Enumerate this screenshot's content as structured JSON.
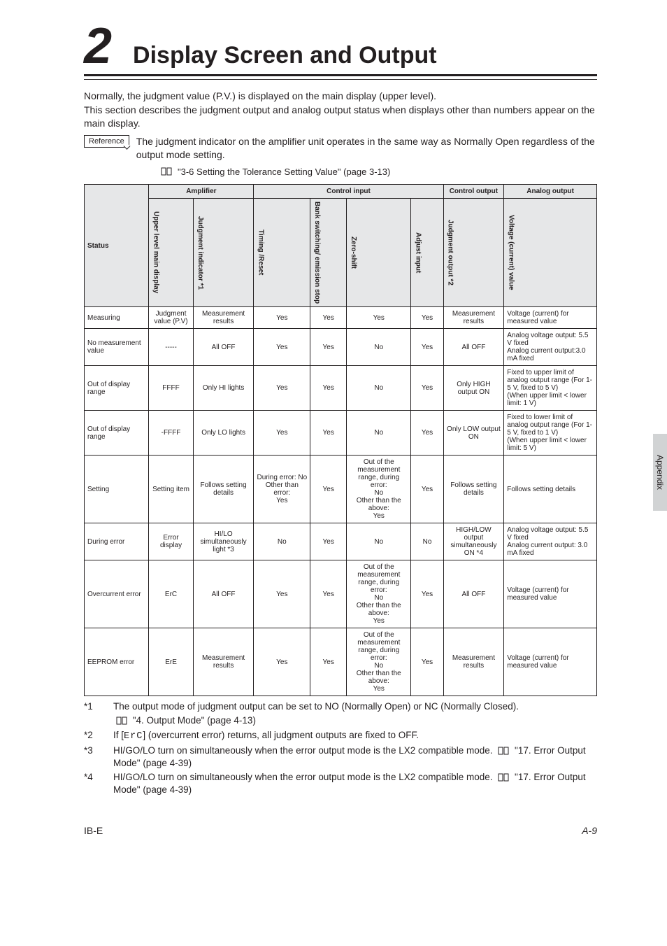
{
  "chapter": {
    "num": "2",
    "title": "Display Screen and Output"
  },
  "intro": "Normally, the judgment value (P.V.) is displayed on the main display (upper level).\nThis section describes the judgment output and analog output status when displays other than numbers appear on the main display.",
  "reference": {
    "label": "Reference",
    "text": "The judgment indicator on the amplifier unit operates in the same way as Normally Open regardless of the output mode setting."
  },
  "xref_top": "\"3-6 Setting the Tolerance Setting Value\" (page 3-13)",
  "table": {
    "group_headers": {
      "status": "Status",
      "amplifier": "Amplifier",
      "control_input": "Control input",
      "control_output": "Control output",
      "analog_output": "Analog output"
    },
    "col_headers": {
      "upper": "Upper level main display",
      "judgment_ind": "Judgment indicator *1",
      "timing": "Timing /Reset",
      "bank": "Bank switching/ emission stop",
      "zero": "Zero-shift",
      "adjust": "Adjust input",
      "judgment_out": "Judgment output *2",
      "voltage": "Voltage (current) value"
    },
    "rows": [
      {
        "status": "Measuring",
        "upper": "Judgment value (P.V)",
        "ji": "Measurement results",
        "timing": "Yes",
        "bank": "Yes",
        "zero": "Yes",
        "adjust": "Yes",
        "jo": "Measurement results",
        "vo": "Voltage (current) for measured value"
      },
      {
        "status": "No measurement value",
        "upper": "-----",
        "ji": "All OFF",
        "timing": "Yes",
        "bank": "Yes",
        "zero": "No",
        "adjust": "Yes",
        "jo": "All OFF",
        "vo": "Analog voltage output: 5.5 V fixed\nAnalog current output:3.0 mA fixed"
      },
      {
        "status": "Out of display range",
        "upper": "FFFF",
        "ji": "Only HI lights",
        "timing": "Yes",
        "bank": "Yes",
        "zero": "No",
        "adjust": "Yes",
        "jo": "Only HIGH output ON",
        "vo": "Fixed to upper limit of analog output range (For 1-5 V, fixed to 5 V)\n(When upper limit < lower limit: 1 V)"
      },
      {
        "status": "Out of display range",
        "upper": "-FFFF",
        "ji": "Only LO lights",
        "timing": "Yes",
        "bank": "Yes",
        "zero": "No",
        "adjust": "Yes",
        "jo": "Only LOW output ON",
        "vo": "Fixed to lower limit of analog output range (For 1-5 V, fixed to 1 V)\n(When upper limit < lower limit: 5 V)"
      },
      {
        "status": "Setting",
        "upper": "Setting item",
        "ji": "Follows setting details",
        "timing": "During error: No\nOther than error:\nYes",
        "bank": "Yes",
        "zero": "Out of the measurement range, during error:\nNo\nOther than the above:\nYes",
        "adjust": "Yes",
        "jo": "Follows setting details",
        "vo": "Follows setting details"
      },
      {
        "status": "During error",
        "upper": "Error display",
        "ji": "HI/LO simultaneously light *3",
        "timing": "No",
        "bank": "Yes",
        "zero": "No",
        "adjust": "No",
        "jo": "HIGH/LOW output simultaneously ON *4",
        "vo": "Analog voltage output: 5.5 V fixed\nAnalog current output: 3.0 mA fixed"
      },
      {
        "status": "Overcurrent error",
        "upper": "ErC",
        "ji": "All OFF",
        "timing": "Yes",
        "bank": "Yes",
        "zero": "Out of the measurement range, during error:\nNo\nOther than the above:\nYes",
        "adjust": "Yes",
        "jo": "All OFF",
        "vo": "Voltage (current) for measured value"
      },
      {
        "status": "EEPROM error",
        "upper": "ErE",
        "ji": "Measurement results",
        "timing": "Yes",
        "bank": "Yes",
        "zero": "Out of the measurement range, during error:\nNo\nOther than the above:\nYes",
        "adjust": "Yes",
        "jo": "Measurement results",
        "vo": "Voltage (current) for measured value"
      }
    ]
  },
  "footnotes": [
    {
      "tag": "*1",
      "body": "The output mode of judgment output can be set to NO (Normally Open) or NC (Normally Closed).",
      "xref": "\"4. Output Mode\" (page 4-13)"
    },
    {
      "tag": "*2",
      "body_pre": "If [",
      "code": "ErC",
      "body_post": "] (overcurrent error) returns, all judgment outputs are fixed to OFF."
    },
    {
      "tag": "*3",
      "body": "HI/GO/LO turn on simultaneously when the error output mode is the LX2 compatible mode.",
      "inline_xref": "\"17. Error Output Mode\" (page 4-39)"
    },
    {
      "tag": "*4",
      "body": "HI/GO/LO turn on simultaneously when the error output mode is the LX2 compatible mode.",
      "inline_xref": "\"17. Error Output Mode\" (page 4-39)"
    }
  ],
  "side_tab": "Appendix",
  "footer": {
    "left": "IB-E",
    "right": "A-9"
  },
  "colors": {
    "header_bg": "#e6e7e8",
    "tab_bg": "#d1d3d4",
    "rule": "#231f20",
    "text": "#231f20"
  }
}
